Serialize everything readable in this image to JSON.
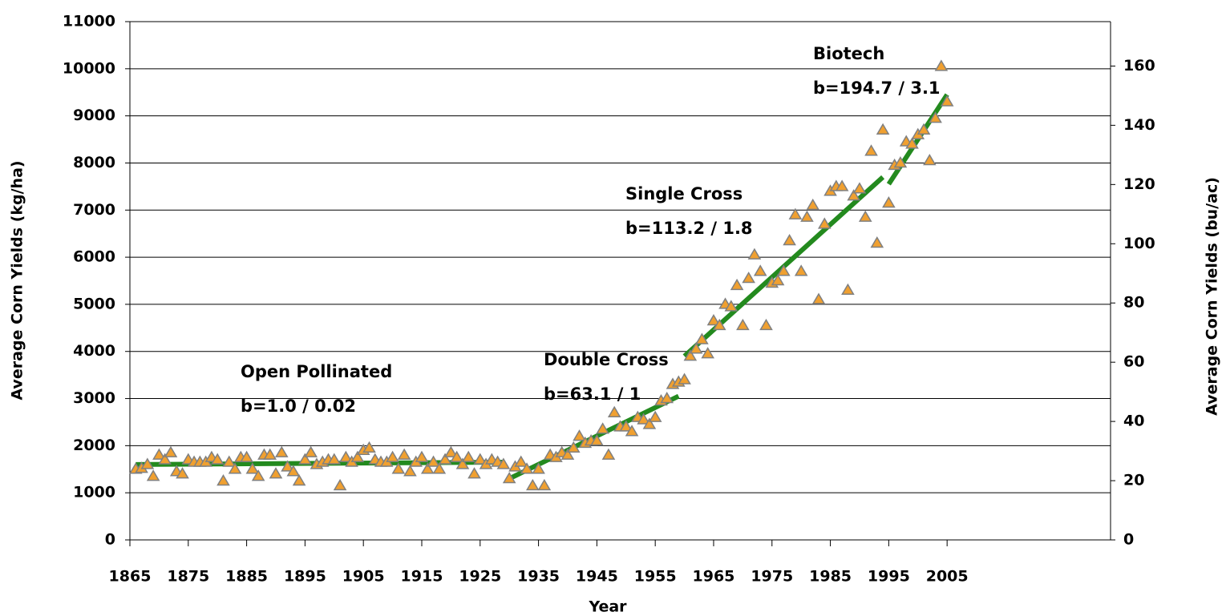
{
  "chart_data": {
    "type": "scatter",
    "xlabel": "Year",
    "ylabel": "Average Corn Yields (kg/ha)",
    "y2label": "Average Corn Yields (bu/ac)",
    "xlim": [
      1865,
      2033
    ],
    "xticks": [
      1865,
      1875,
      1885,
      1895,
      1905,
      1915,
      1925,
      1935,
      1945,
      1955,
      1965,
      1975,
      1985,
      1995,
      2005
    ],
    "ylim": [
      0,
      11000
    ],
    "yticks": [
      0,
      1000,
      2000,
      3000,
      4000,
      5000,
      6000,
      7000,
      8000,
      9000,
      10000,
      11000
    ],
    "y2lim": [
      0,
      175
    ],
    "y2ticks": [
      0,
      20,
      40,
      60,
      80,
      100,
      120,
      140,
      160
    ],
    "grid": true,
    "marker_color": "#f0a030",
    "x": [
      1866,
      1867,
      1868,
      1869,
      1870,
      1871,
      1872,
      1873,
      1874,
      1875,
      1876,
      1877,
      1878,
      1879,
      1880,
      1881,
      1882,
      1883,
      1884,
      1885,
      1886,
      1887,
      1888,
      1889,
      1890,
      1891,
      1892,
      1893,
      1894,
      1895,
      1896,
      1897,
      1898,
      1899,
      1900,
      1901,
      1902,
      1903,
      1904,
      1905,
      1906,
      1907,
      1908,
      1909,
      1910,
      1911,
      1912,
      1913,
      1914,
      1915,
      1916,
      1917,
      1918,
      1919,
      1920,
      1921,
      1922,
      1923,
      1924,
      1925,
      1926,
      1927,
      1928,
      1929,
      1930,
      1931,
      1932,
      1933,
      1934,
      1935,
      1936,
      1937,
      1938,
      1939,
      1940,
      1941,
      1942,
      1943,
      1944,
      1945,
      1946,
      1947,
      1948,
      1949,
      1950,
      1951,
      1952,
      1953,
      1954,
      1955,
      1956,
      1957,
      1958,
      1959,
      1960,
      1961,
      1962,
      1963,
      1964,
      1965,
      1966,
      1967,
      1968,
      1969,
      1970,
      1971,
      1972,
      1973,
      1974,
      1975,
      1976,
      1977,
      1978,
      1979,
      1980,
      1981,
      1982,
      1983,
      1984,
      1985,
      1986,
      1987,
      1988,
      1989,
      1990,
      1991,
      1992,
      1993,
      1994,
      1995,
      1996,
      1997,
      1998,
      1999,
      2000,
      2001,
      2002,
      2003,
      2004,
      2005
    ],
    "values": [
      1500,
      1520,
      1600,
      1350,
      1800,
      1700,
      1850,
      1450,
      1400,
      1700,
      1650,
      1650,
      1650,
      1750,
      1700,
      1250,
      1650,
      1500,
      1750,
      1750,
      1500,
      1350,
      1800,
      1800,
      1400,
      1850,
      1550,
      1450,
      1250,
      1700,
      1850,
      1600,
      1650,
      1700,
      1700,
      1150,
      1750,
      1650,
      1750,
      1900,
      1950,
      1700,
      1650,
      1650,
      1750,
      1500,
      1800,
      1450,
      1650,
      1750,
      1500,
      1650,
      1500,
      1700,
      1850,
      1750,
      1600,
      1750,
      1400,
      1700,
      1600,
      1700,
      1650,
      1600,
      1300,
      1550,
      1650,
      1500,
      1150,
      1500,
      1150,
      1800,
      1750,
      1850,
      1800,
      1950,
      2200,
      2050,
      2100,
      2100,
      2350,
      1800,
      2700,
      2400,
      2400,
      2300,
      2600,
      2550,
      2450,
      2600,
      2950,
      3000,
      3300,
      3350,
      3400,
      3900,
      4050,
      4250,
      3950,
      4650,
      4550,
      5000,
      4950,
      5400,
      4550,
      5550,
      6050,
      5700,
      4550,
      5450,
      5500,
      5700,
      6350,
      6900,
      5700,
      6850,
      7100,
      5100,
      6700,
      7400,
      7500,
      7500,
      5300,
      7300,
      7450,
      6850,
      8250,
      6300,
      8700,
      7150,
      7950,
      8000,
      8450,
      8400,
      8600,
      8700,
      8050,
      8950,
      10050,
      9300
    ],
    "trend_lines": [
      {
        "color": "#238a1e",
        "x": [
          1866,
          1929
        ],
        "values": [
          1600,
          1650
        ]
      },
      {
        "color": "#238a1e",
        "x": [
          1930,
          1959
        ],
        "values": [
          1300,
          3050
        ]
      },
      {
        "color": "#238a1e",
        "x": [
          1960,
          1994
        ],
        "values": [
          3900,
          7700
        ]
      },
      {
        "color": "#238a1e",
        "x": [
          1995,
          2005
        ],
        "values": [
          7550,
          9450
        ]
      }
    ],
    "annotations": [
      {
        "title": "Open Pollinated",
        "slope": "b=1.0 / 0.02"
      },
      {
        "title": "Double Cross",
        "slope": "b=63.1 / 1"
      },
      {
        "title": "Single Cross",
        "slope": "b=113.2 / 1.8"
      },
      {
        "title": "Biotech",
        "slope": "b=194.7 / 3.1"
      }
    ]
  }
}
